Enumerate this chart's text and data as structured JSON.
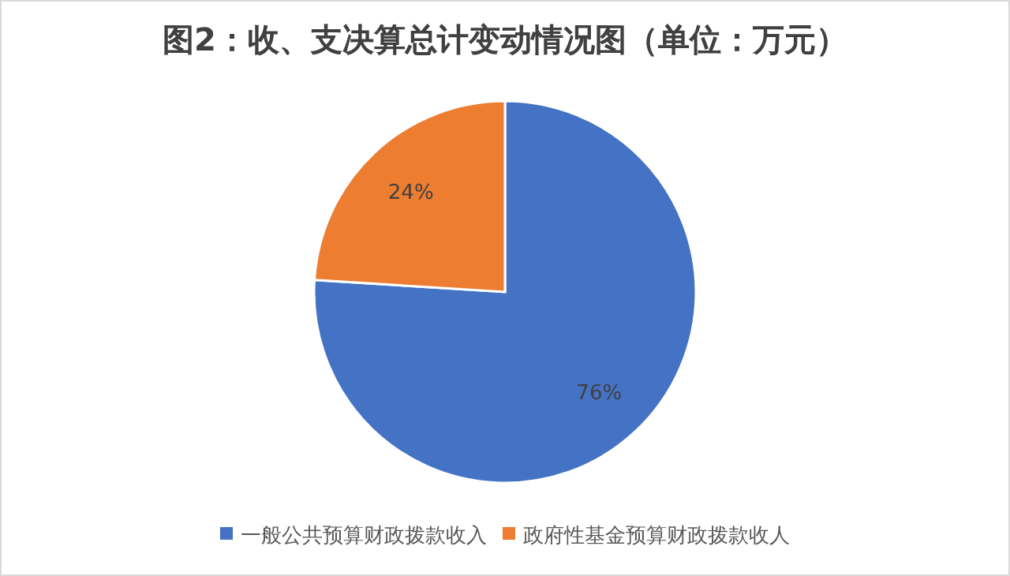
{
  "chart_data": {
    "type": "pie",
    "title": "图2：收、支决算总计变动情况图（单位：万元）",
    "categories": [
      "一般公共预算财政拨款收入",
      "政府性基金预算财政拨款收人"
    ],
    "values": [
      76,
      24
    ],
    "colors": [
      "#4472c4",
      "#ed7d31"
    ],
    "value_labels": [
      "76%",
      "24%"
    ],
    "legend": "bottom"
  }
}
